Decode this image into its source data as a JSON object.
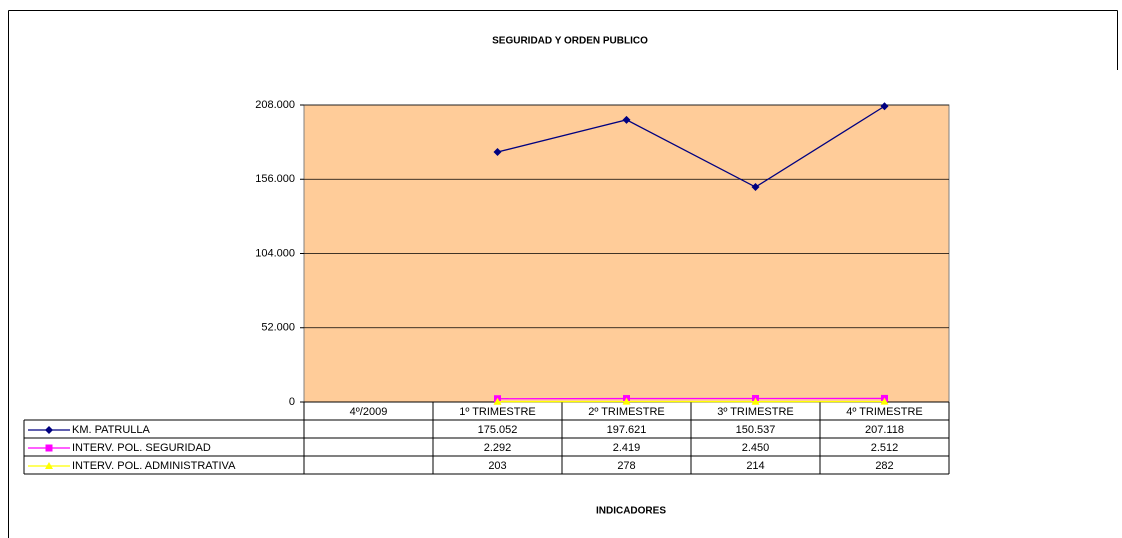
{
  "chart_data": {
    "type": "line",
    "title": "SEGURIDAD Y ORDEN PUBLICO",
    "x_label": "INDICADORES",
    "categories": [
      "4º/2009",
      "1º TRIMESTRE",
      "2º TRIMESTRE",
      "3º TRIMESTRE",
      "4º TRIMESTRE"
    ],
    "series": [
      {
        "name": "KM. PATRULLA",
        "color": "#000080",
        "marker": "diamond",
        "values": [
          null,
          175052,
          197621,
          150537,
          207118
        ],
        "value_labels": [
          null,
          "175.052",
          "197.621",
          "150.537",
          "207.118"
        ]
      },
      {
        "name": "INTERV. POL. SEGURIDAD",
        "color": "#ff00ff",
        "marker": "square",
        "values": [
          null,
          2292,
          2419,
          2450,
          2512
        ],
        "value_labels": [
          null,
          "2.292",
          "2.419",
          "2.450",
          "2.512"
        ]
      },
      {
        "name": "INTERV. POL. ADMINISTRATIVA",
        "color": "#ffff00",
        "marker": "triangle",
        "values": [
          null,
          203,
          278,
          214,
          282
        ]
      }
    ],
    "ylim": [
      0,
      208000
    ],
    "yticks": [
      0,
      {
        "value": 52000,
        "label": "52.000"
      },
      {
        "value": 104000,
        "label": "104.000"
      },
      {
        "value": 156000,
        "label": "156.000"
      },
      {
        "value": 208000,
        "label": "208.000"
      }
    ],
    "grid": true,
    "plot_background": "#ffcc99",
    "data_table": true
  }
}
